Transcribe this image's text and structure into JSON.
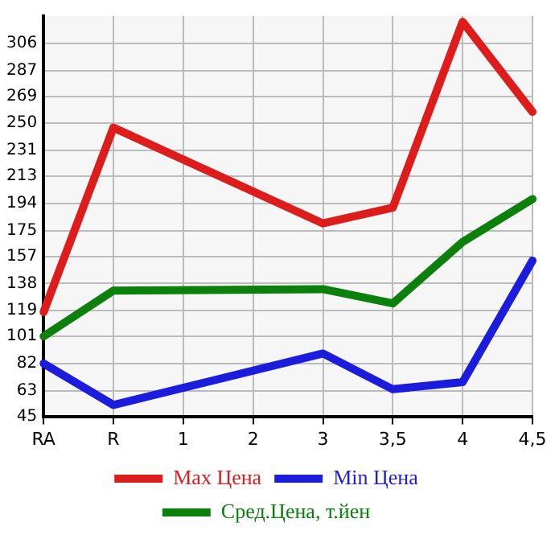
{
  "chart_data": {
    "type": "line",
    "categories": [
      "RA",
      "R",
      "1",
      "2",
      "3",
      "3,5",
      "4",
      "4,5"
    ],
    "series": [
      {
        "name": "Max Цена",
        "color": "#dd1c1c",
        "values": [
          118,
          247,
          null,
          null,
          180,
          191,
          321,
          258
        ]
      },
      {
        "name": "Min Цена",
        "color": "#1c1cdd",
        "values": [
          82,
          53,
          null,
          null,
          89,
          64,
          69,
          154
        ]
      },
      {
        "name": "Сред.Цена, т.йен",
        "color": "#0b800b",
        "values": [
          101,
          133,
          null,
          null,
          134,
          124,
          167,
          197
        ]
      }
    ],
    "ylim": [
      45,
      325
    ],
    "yticks": [
      45,
      63,
      82,
      101,
      119,
      138,
      157,
      175,
      194,
      213,
      231,
      250,
      269,
      287,
      306
    ],
    "grid": true,
    "legend": "bottom",
    "marker": "none",
    "line_style": "solid"
  }
}
